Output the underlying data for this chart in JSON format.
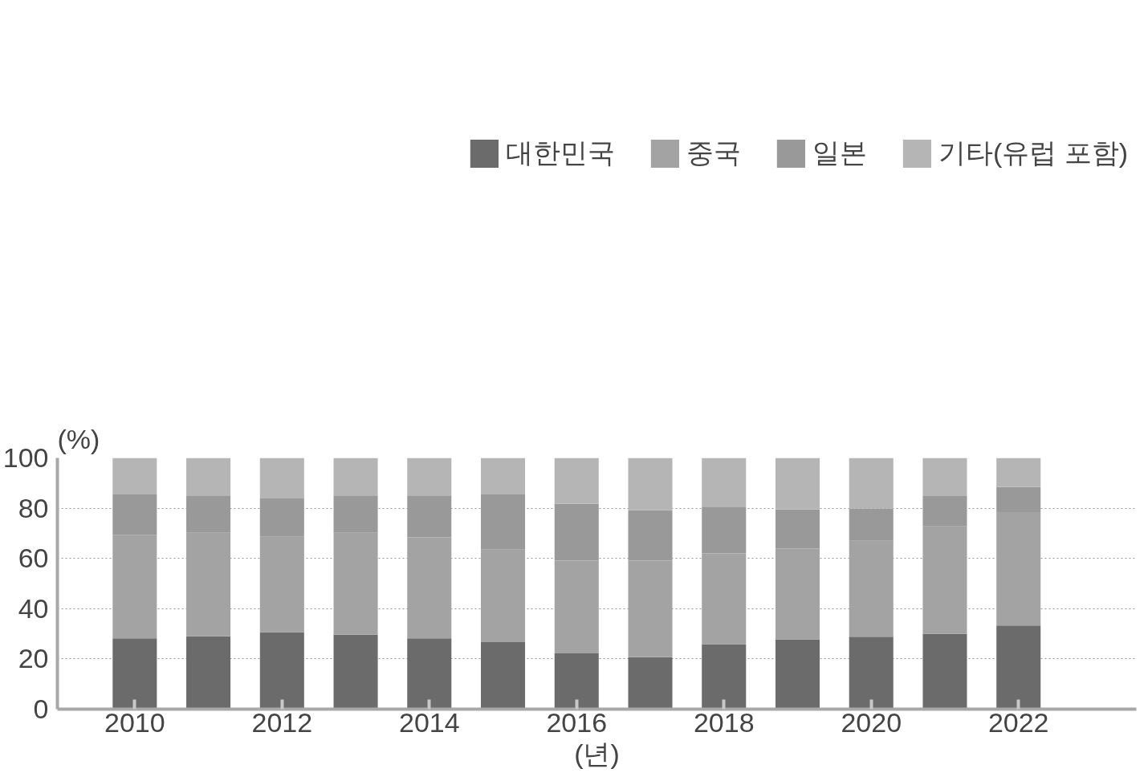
{
  "chart_data": {
    "type": "bar",
    "stacked": true,
    "ylabel": "(%)",
    "xlabel": "(년)",
    "categories": [
      "2010",
      null,
      "2012",
      null,
      "2014",
      null,
      "2016",
      null,
      "2018",
      null,
      "2020",
      null,
      "2022"
    ],
    "series": [
      {
        "name": "대한민국",
        "color": "#6b6b6b",
        "values": [
          28.2,
          29.0,
          30.6,
          29.6,
          28.2,
          26.7,
          22.2,
          20.7,
          25.9,
          27.8,
          28.8,
          30.0,
          33.3
        ]
      },
      {
        "name": "중국",
        "color": "#a3a3a3",
        "values": [
          41.2,
          41.2,
          38.0,
          40.6,
          40.2,
          36.8,
          36.9,
          38.4,
          36.1,
          36.1,
          38.2,
          42.8,
          45.1
        ]
      },
      {
        "name": "일본",
        "color": "#999999",
        "values": [
          16.1,
          14.9,
          15.3,
          14.9,
          16.7,
          22.0,
          22.7,
          20.1,
          18.6,
          15.6,
          12.8,
          12.0,
          10.1
        ]
      },
      {
        "name": "기타(유럽 포함)",
        "color": "#b5b5b5",
        "values": [
          14.5,
          14.9,
          16.1,
          14.9,
          14.9,
          14.5,
          18.2,
          20.8,
          19.4,
          20.5,
          20.2,
          15.2,
          11.5
        ]
      }
    ],
    "ylim": [
      0,
      100
    ],
    "yticks": [
      0,
      20,
      40,
      60,
      80,
      100
    ],
    "grid": "y",
    "legend": "top"
  }
}
